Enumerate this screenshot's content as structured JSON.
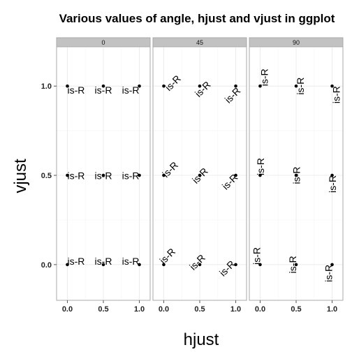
{
  "chart_data": {
    "type": "scatter",
    "title": "Various values of angle, hjust and vjust in ggplot",
    "xlabel": "hjust",
    "ylabel": "vjust",
    "xlim": [
      -0.15,
      1.15
    ],
    "ylim": [
      -0.2,
      1.22
    ],
    "x_ticks": [
      0.0,
      0.5,
      1.0
    ],
    "x_tick_labels": [
      "0.0",
      "0.5",
      "1.0"
    ],
    "y_ticks": [
      0.0,
      0.5,
      1.0
    ],
    "y_tick_labels": [
      "0.0",
      "0.5",
      "1.0"
    ],
    "grid": true,
    "point_label": "is-R",
    "facet_variable": "angle",
    "panels": [
      {
        "angle": 0,
        "strip": "0"
      },
      {
        "angle": 45,
        "strip": "45"
      },
      {
        "angle": 90,
        "strip": "90"
      }
    ],
    "points": [
      {
        "hjust": 0.0,
        "vjust": 0.0
      },
      {
        "hjust": 0.5,
        "vjust": 0.0
      },
      {
        "hjust": 1.0,
        "vjust": 0.0
      },
      {
        "hjust": 0.0,
        "vjust": 0.5
      },
      {
        "hjust": 0.5,
        "vjust": 0.5
      },
      {
        "hjust": 1.0,
        "vjust": 0.5
      },
      {
        "hjust": 0.0,
        "vjust": 1.0
      },
      {
        "hjust": 0.5,
        "vjust": 1.0
      },
      {
        "hjust": 1.0,
        "vjust": 1.0
      }
    ],
    "colors": {
      "strip_fill": "#c2c2c2",
      "panel_border": "#aaaaaa",
      "grid_major": "#ececec",
      "grid_minor": "#f6f6f6",
      "point": "#000000"
    }
  }
}
